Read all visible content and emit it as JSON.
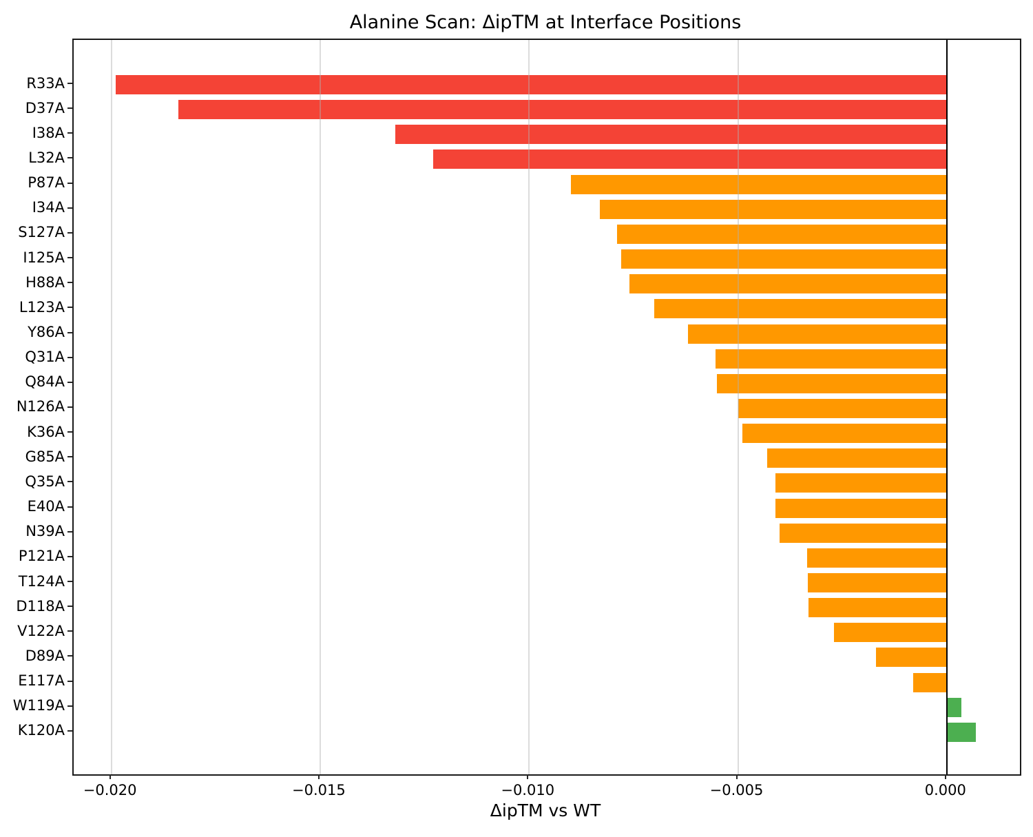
{
  "chart_data": {
    "type": "bar",
    "orientation": "horizontal",
    "title": "Alanine Scan: ΔipTM at Interface Positions",
    "xlabel": "ΔipTM vs WT",
    "ylabel": "",
    "categories": [
      "R33A",
      "D37A",
      "I38A",
      "L32A",
      "P87A",
      "I34A",
      "S127A",
      "I125A",
      "H88A",
      "L123A",
      "Y86A",
      "Q31A",
      "Q84A",
      "N126A",
      "K36A",
      "G85A",
      "Q35A",
      "E40A",
      "N39A",
      "P121A",
      "T124A",
      "D118A",
      "V122A",
      "D89A",
      "E117A",
      "W119A",
      "K120A"
    ],
    "values": [
      -0.0199,
      -0.0184,
      -0.0132,
      -0.0123,
      -0.009,
      -0.0083,
      -0.0079,
      -0.0078,
      -0.0076,
      -0.007,
      -0.0062,
      -0.00553,
      -0.0055,
      -0.005,
      -0.0049,
      -0.0043,
      -0.00411,
      -0.0041,
      -0.004,
      -0.00335,
      -0.00333,
      -0.00331,
      -0.0027,
      -0.0017,
      -0.0008,
      0.00035,
      0.0007
    ],
    "bar_colors": [
      "#f44336",
      "#f44336",
      "#f44336",
      "#f44336",
      "#ff9800",
      "#ff9800",
      "#ff9800",
      "#ff9800",
      "#ff9800",
      "#ff9800",
      "#ff9800",
      "#ff9800",
      "#ff9800",
      "#ff9800",
      "#ff9800",
      "#ff9800",
      "#ff9800",
      "#ff9800",
      "#ff9800",
      "#ff9800",
      "#ff9800",
      "#ff9800",
      "#ff9800",
      "#ff9800",
      "#ff9800",
      "#4caf50",
      "#4caf50"
    ],
    "color_meaning": {
      "red": "#f44336",
      "orange": "#ff9800",
      "green": "#4caf50"
    },
    "xlim": [
      -0.0209,
      0.00175
    ],
    "xticks": [
      -0.02,
      -0.015,
      -0.01,
      -0.005,
      0.0
    ],
    "xtick_labels": [
      "−0.020",
      "−0.015",
      "−0.010",
      "−0.005",
      "0.000"
    ],
    "grid": "vertical-only",
    "zero_line": true,
    "legend": "none"
  }
}
